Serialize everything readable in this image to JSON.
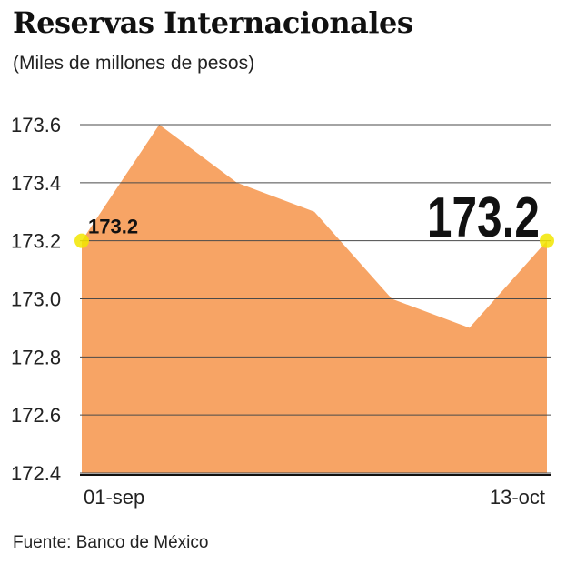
{
  "header": {
    "title": "Reservas Internacionales",
    "subtitle": "(Miles de millones de pesos)"
  },
  "footer": {
    "source": "Fuente: Banco de México"
  },
  "colors": {
    "area_fill": "#f7a465",
    "grid": "#4a4a4a",
    "marker": "#f2e600",
    "text": "#111111"
  },
  "chart_data": {
    "type": "area",
    "x": [
      "01-sep",
      "",
      "",
      "",
      "",
      "",
      "13-oct"
    ],
    "values": [
      173.2,
      173.6,
      173.4,
      173.3,
      173.0,
      172.9,
      173.2
    ],
    "x_tick_labels": [
      "01-sep",
      "13-oct"
    ],
    "y_ticks": [
      173.6,
      173.4,
      173.2,
      173.0,
      172.8,
      172.6,
      172.4
    ],
    "y_tick_labels": [
      "173.6",
      "173.4",
      "173.2",
      "173.0",
      "172.8",
      "172.6",
      "172.4"
    ],
    "ylim": [
      172.4,
      173.6
    ],
    "grid": true,
    "annotations": {
      "start_label": "173.2",
      "end_label": "173.2"
    }
  }
}
